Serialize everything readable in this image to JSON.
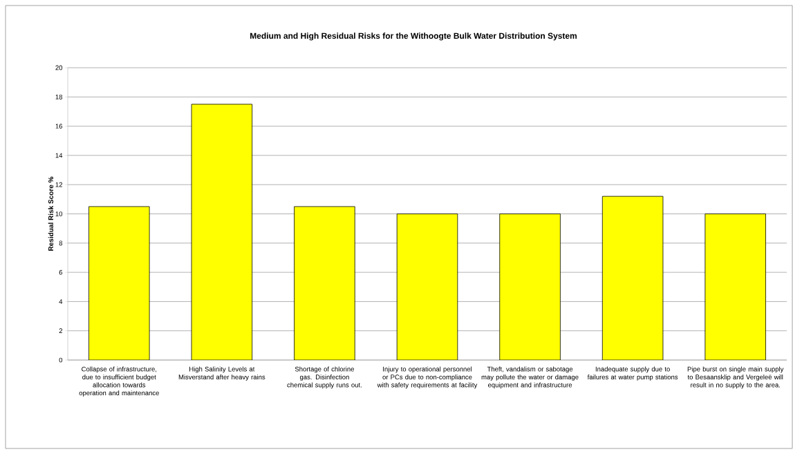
{
  "chart_data": {
    "type": "bar",
    "title": "Medium and High Residual Risks for the Withoogte Bulk Water Distribution System",
    "ylabel": "Residual Risk Score %",
    "categories": [
      "Collapse of infrastructure, due to insufficient budget allocation towards operation and maintenance",
      "High Salinity Levels at Misverstand after heavy rains",
      "Shortage of chlorine gas.  Disinfection chemical supply runs out.",
      "Injury to operational personnel or PCs due to non-compliance with safety requirements at facility",
      "Theft, vandalism or sabotage may pollute the water or damage equipment and infrastructure",
      "Inadequate supply due to failures at water pump stations",
      "Pipe burst on single main supply to Besaansklip and Vergeleë will result in no supply to the area."
    ],
    "values": [
      10.5,
      17.5,
      10.5,
      10,
      10,
      11.2,
      10
    ],
    "color": "#ffff00",
    "ylim": [
      0,
      20
    ],
    "yticks": [
      0,
      2,
      4,
      6,
      8,
      10,
      12,
      14,
      16,
      18,
      20
    ],
    "grid": "y"
  }
}
